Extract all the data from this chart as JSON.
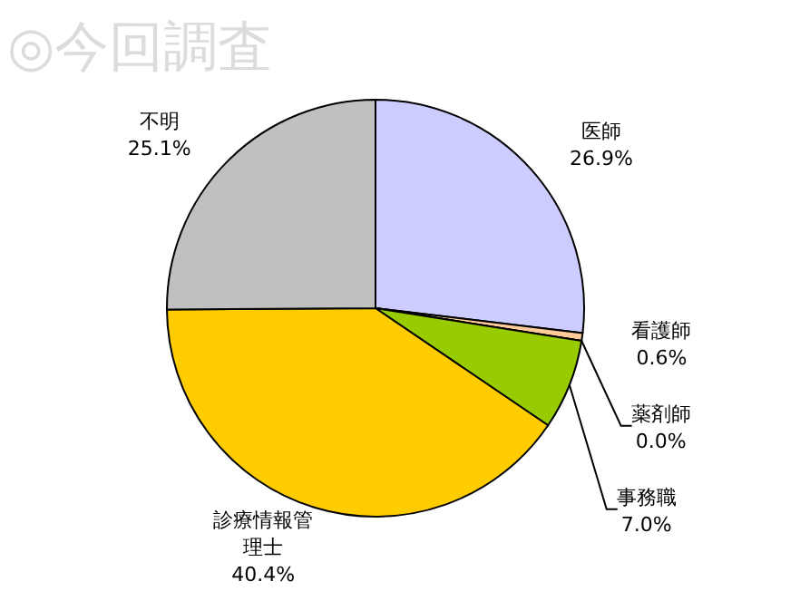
{
  "chart_data": {
    "type": "pie",
    "title": "◎今回調査",
    "categories": [
      "医師",
      "看護師",
      "薬剤師",
      "事務職",
      "診療情報管理士",
      "不明"
    ],
    "values": [
      26.9,
      0.6,
      0.0,
      7.0,
      40.4,
      25.1
    ],
    "colors": [
      "#ccccff",
      "#ffcc99",
      "#ff9900",
      "#99cc00",
      "#ffcc00",
      "#c0c0c0"
    ],
    "value_labels": [
      "26.9%",
      "0.6%",
      "0.0%",
      "7.0%",
      "40.4%",
      "25.1%"
    ]
  }
}
